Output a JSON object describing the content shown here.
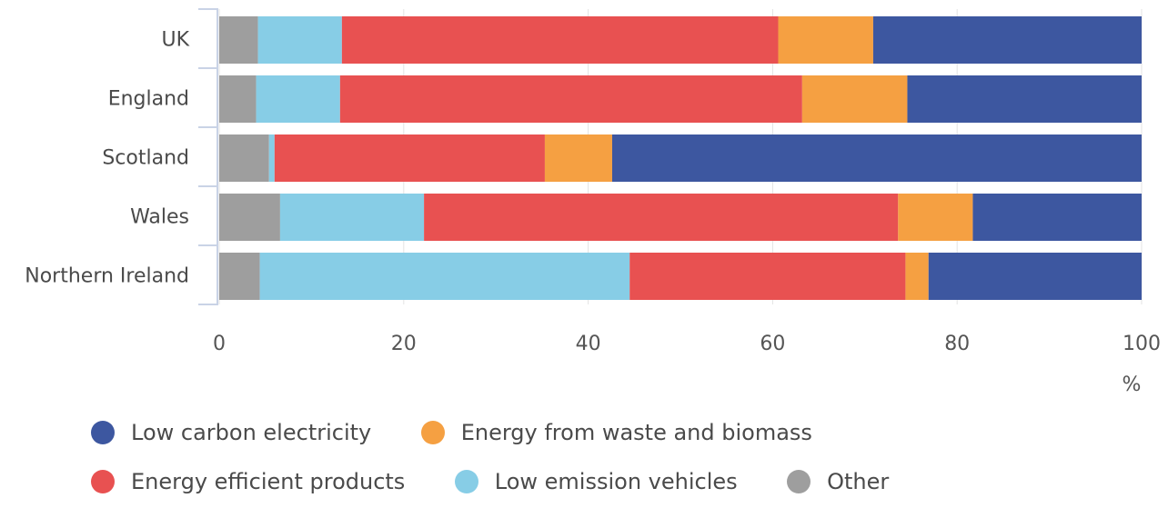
{
  "chart_data": {
    "type": "bar",
    "orientation": "horizontal",
    "stacked": true,
    "categories": [
      "UK",
      "England",
      "Scotland",
      "Wales",
      "Northern Ireland"
    ],
    "series": [
      {
        "name": "Other",
        "color": "#9e9e9e",
        "values": [
          4.2,
          4.0,
          5.4,
          6.6,
          4.4
        ]
      },
      {
        "name": "Low emission vehicles",
        "color": "#87cde6",
        "values": [
          9.1,
          9.1,
          0.6,
          15.6,
          40.1
        ]
      },
      {
        "name": "Energy efficient products",
        "color": "#e85151",
        "values": [
          47.3,
          50.1,
          29.3,
          51.4,
          29.9
        ]
      },
      {
        "name": "Energy from waste and biomass",
        "color": "#f5a042",
        "values": [
          10.3,
          11.4,
          7.3,
          8.1,
          2.5
        ]
      },
      {
        "name": "Low carbon electricity",
        "color": "#3d57a0",
        "values": [
          29.1,
          25.4,
          57.4,
          18.3,
          23.1
        ]
      }
    ],
    "xticks": [
      "0",
      "20",
      "40",
      "60",
      "80",
      "100"
    ],
    "xlim": [
      0,
      100
    ],
    "xlabel": "%",
    "ylabel": "",
    "grid": true,
    "legend": {
      "position": "bottom",
      "rows": [
        [
          "Low carbon electricity",
          "Energy from waste and biomass"
        ],
        [
          "Energy efficient products",
          "Low emission vehicles",
          "Other"
        ]
      ]
    }
  }
}
